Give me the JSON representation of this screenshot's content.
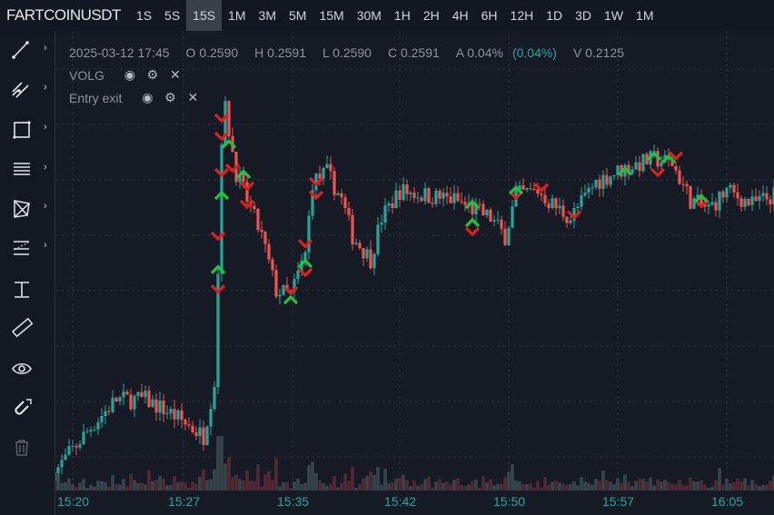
{
  "header": {
    "symbol": "FARTCOINUSDT",
    "timeframes": [
      "1S",
      "5S",
      "15S",
      "1M",
      "3M",
      "5M",
      "15M",
      "30M",
      "1H",
      "2H",
      "4H",
      "6H",
      "12H",
      "1D",
      "3D",
      "1W",
      "1M"
    ],
    "active_timeframe": "15S"
  },
  "toolbar": {
    "tools": [
      "trend-line",
      "fib-channel",
      "rectangle",
      "horizontal-lines",
      "pattern",
      "parallel-channel",
      "measure",
      "ruler",
      "eye",
      "magnet",
      "trash"
    ]
  },
  "legend": {
    "datetime": "2025-03-12 17:45",
    "open": "O 0.2590",
    "high": "H 0.2591",
    "low": "L 0.2590",
    "close": "C 0.2591",
    "amplitude": "A 0.04%",
    "change": "(0.04%)",
    "volume": "V 0.2125",
    "indicators": [
      {
        "name": "VOLG"
      },
      {
        "name": "Entry exit"
      }
    ]
  },
  "colors": {
    "up": "#26a69a",
    "down": "#ef5350",
    "buy_marker": "#1fc43a",
    "sell_marker": "#e01e1e",
    "change_text": "#26a69a",
    "background": "#161a25"
  },
  "chart_data": {
    "type": "candlestick",
    "interval": "15s",
    "ylim": [
      0.2201,
      0.2801
    ],
    "grid": true,
    "x_ticks": [
      "15:20",
      "15:27",
      "15:35",
      "15:42",
      "15:50",
      "15:57",
      "16:05"
    ],
    "close_keypoints": [
      [
        "15:18:45",
        0.2225
      ],
      [
        "15:21:15",
        0.2285
      ],
      [
        "15:23:00",
        0.2321
      ],
      [
        "15:25:00",
        0.2321
      ],
      [
        "15:26:45",
        0.2303
      ],
      [
        "15:29:00",
        0.2273
      ],
      [
        "15:29:45",
        0.2345
      ],
      [
        "15:30:00",
        0.2489
      ],
      [
        "15:30:15",
        0.2669
      ],
      [
        "15:30:30",
        0.2705
      ],
      [
        "15:31:15",
        0.2621
      ],
      [
        "15:32:15",
        0.2573
      ],
      [
        "15:33:00",
        0.2537
      ],
      [
        "15:34:00",
        0.2465
      ],
      [
        "15:35:00",
        0.2459
      ],
      [
        "15:36:00",
        0.2513
      ],
      [
        "15:36:30",
        0.2609
      ],
      [
        "15:37:30",
        0.2621
      ],
      [
        "15:38:30",
        0.2585
      ],
      [
        "15:39:15",
        0.2537
      ],
      [
        "15:40:30",
        0.2507
      ],
      [
        "15:41:15",
        0.2561
      ],
      [
        "15:42:30",
        0.2597
      ],
      [
        "15:44:15",
        0.2591
      ],
      [
        "15:46:15",
        0.2585
      ],
      [
        "15:47:30",
        0.2573
      ],
      [
        "15:48:45",
        0.2561
      ],
      [
        "15:49:45",
        0.2537
      ],
      [
        "15:50:30",
        0.2591
      ],
      [
        "15:52:00",
        0.2597
      ],
      [
        "15:53:00",
        0.2579
      ],
      [
        "15:54:15",
        0.2561
      ],
      [
        "15:56:00",
        0.2609
      ],
      [
        "15:58:00",
        0.2627
      ],
      [
        "16:00:00",
        0.2639
      ],
      [
        "16:01:15",
        0.2633
      ],
      [
        "16:02:30",
        0.2585
      ],
      [
        "16:03:45",
        0.2573
      ],
      [
        "16:05:00",
        0.2597
      ],
      [
        "16:06:45",
        0.2579
      ],
      [
        "16:08:15",
        0.2591
      ]
    ],
    "markers": [
      {
        "t": "15:30:15",
        "price": 0.2693,
        "side": "sell"
      },
      {
        "t": "15:30:15",
        "price": 0.2669,
        "side": "sell"
      },
      {
        "t": "15:30:15",
        "price": 0.2621,
        "side": "sell"
      },
      {
        "t": "15:30:00",
        "price": 0.2537,
        "side": "sell"
      },
      {
        "t": "15:30:00",
        "price": 0.2467,
        "side": "sell"
      },
      {
        "t": "15:31:00",
        "price": 0.2627,
        "side": "sell"
      },
      {
        "t": "15:32:00",
        "price": 0.2603,
        "side": "sell"
      },
      {
        "t": "15:32:00",
        "price": 0.2579,
        "side": "sell"
      },
      {
        "t": "15:35:00",
        "price": 0.2465,
        "side": "sell"
      },
      {
        "t": "15:36:00",
        "price": 0.2489,
        "side": "sell"
      },
      {
        "t": "15:36:00",
        "price": 0.2527,
        "side": "sell"
      },
      {
        "t": "15:36:45",
        "price": 0.2609,
        "side": "sell"
      },
      {
        "t": "15:36:45",
        "price": 0.2591,
        "side": "sell"
      },
      {
        "t": "15:47:30",
        "price": 0.2543,
        "side": "sell"
      },
      {
        "t": "15:50:30",
        "price": 0.2591,
        "side": "sell"
      },
      {
        "t": "15:52:15",
        "price": 0.2601,
        "side": "sell"
      },
      {
        "t": "15:54:30",
        "price": 0.2565,
        "side": "sell"
      },
      {
        "t": "16:00:15",
        "price": 0.2621,
        "side": "sell"
      },
      {
        "t": "16:01:30",
        "price": 0.2643,
        "side": "sell"
      },
      {
        "t": "16:03:15",
        "price": 0.258,
        "side": "sell"
      },
      {
        "t": "15:30:45",
        "price": 0.2659,
        "side": "buy"
      },
      {
        "t": "15:30:15",
        "price": 0.2591,
        "side": "buy"
      },
      {
        "t": "15:30:00",
        "price": 0.2493,
        "side": "buy"
      },
      {
        "t": "15:31:45",
        "price": 0.2619,
        "side": "buy"
      },
      {
        "t": "15:35:00",
        "price": 0.2453,
        "side": "buy"
      },
      {
        "t": "15:36:00",
        "price": 0.2501,
        "side": "buy"
      },
      {
        "t": "15:47:30",
        "price": 0.2579,
        "side": "buy"
      },
      {
        "t": "15:47:30",
        "price": 0.2555,
        "side": "buy"
      },
      {
        "t": "15:50:30",
        "price": 0.2598,
        "side": "buy"
      },
      {
        "t": "15:58:00",
        "price": 0.2623,
        "side": "buy"
      },
      {
        "t": "16:00:00",
        "price": 0.2643,
        "side": "buy"
      },
      {
        "t": "16:01:00",
        "price": 0.2639,
        "side": "buy"
      },
      {
        "t": "16:03:15",
        "price": 0.2587,
        "side": "buy"
      }
    ]
  }
}
